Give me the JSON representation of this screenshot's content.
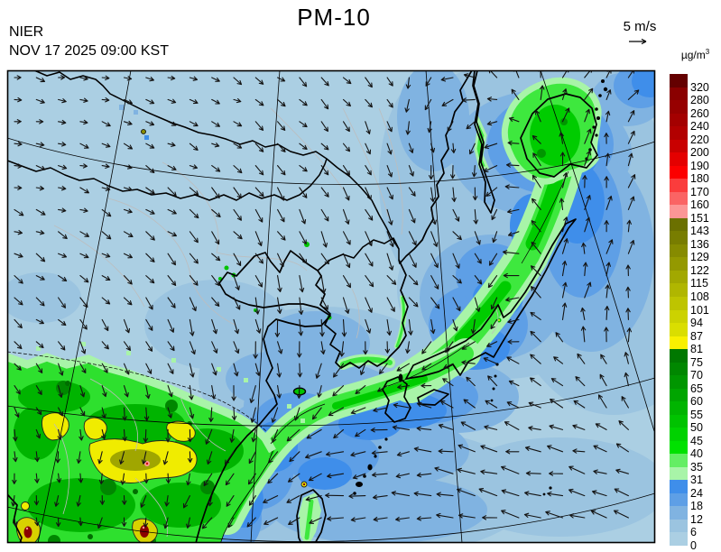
{
  "header": {
    "title": "PM-10",
    "agency": "NIER",
    "datetime": "NOV 17 2025 09:00 KST"
  },
  "wind_legend": {
    "label": "5 m/s",
    "arrow_icon": "right-arrow"
  },
  "colorbar": {
    "unit_base": "µg/m",
    "unit_exp": "3",
    "segments": [
      {
        "label": "320",
        "color": "#640000"
      },
      {
        "label": "280",
        "color": "#8a0000"
      },
      {
        "label": "260",
        "color": "#970000"
      },
      {
        "label": "240",
        "color": "#a40000"
      },
      {
        "label": "220",
        "color": "#b20000"
      },
      {
        "label": "200",
        "color": "#c90000"
      },
      {
        "label": "190",
        "color": "#e40000"
      },
      {
        "label": "180",
        "color": "#fc0000"
      },
      {
        "label": "170",
        "color": "#fa3c3c"
      },
      {
        "label": "160",
        "color": "#fa6464"
      },
      {
        "label": "151",
        "color": "#fc9696"
      },
      {
        "label": "143",
        "color": "#6b7000"
      },
      {
        "label": "136",
        "color": "#787d00"
      },
      {
        "label": "129",
        "color": "#868b00"
      },
      {
        "label": "122",
        "color": "#949900"
      },
      {
        "label": "115",
        "color": "#a2a800"
      },
      {
        "label": "108",
        "color": "#b0b600"
      },
      {
        "label": "101",
        "color": "#bec400"
      },
      {
        "label": "94",
        "color": "#ccd200"
      },
      {
        "label": "87",
        "color": "#dade00"
      },
      {
        "label": "81",
        "color": "#f8f000"
      },
      {
        "label": "75",
        "color": "#007800"
      },
      {
        "label": "70",
        "color": "#008700"
      },
      {
        "label": "65",
        "color": "#009600"
      },
      {
        "label": "60",
        "color": "#00a500"
      },
      {
        "label": "55",
        "color": "#00b400"
      },
      {
        "label": "50",
        "color": "#00c300"
      },
      {
        "label": "45",
        "color": "#00d200"
      },
      {
        "label": "40",
        "color": "#00e100"
      },
      {
        "label": "35",
        "color": "#64ee64"
      },
      {
        "label": "31",
        "color": "#a8f4a8"
      },
      {
        "label": "24",
        "color": "#3f8eea"
      },
      {
        "label": "18",
        "color": "#5e9fe6"
      },
      {
        "label": "12",
        "color": "#80b3e1"
      },
      {
        "label": "6",
        "color": "#9bc4e0"
      },
      {
        "label": "0",
        "color": "#abcfe3"
      }
    ]
  },
  "map": {
    "kind": "PM-10 surface concentration forecast with wind vectors",
    "region": "East Asia (China, Korea, Japan)",
    "ocean_base_color": "#abcfe3"
  }
}
